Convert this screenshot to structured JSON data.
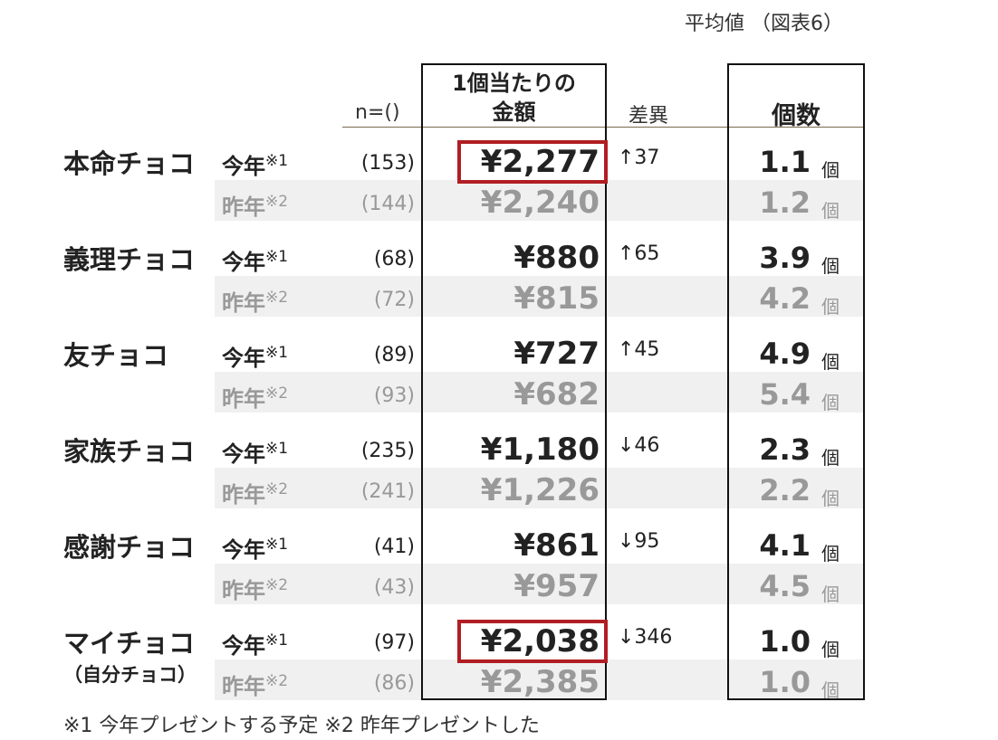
{
  "title": "平均値 （図表6）",
  "headers": {
    "n": "n=()",
    "amount": [
      "1個当たりの",
      "金額"
    ],
    "diff": "差異",
    "count": "個数"
  },
  "groups": [
    {
      "name": "本命チョコ",
      "rows": [
        {
          "label": "今年",
          "note": "※1",
          "n": "(153)",
          "amount": "¥2,277",
          "diff": "↑37",
          "count": "1.1",
          "unit": "個",
          "highlight": true
        },
        {
          "label": "昨年",
          "note": "※2",
          "n": "(144)",
          "amount": "¥2,240",
          "count": "1.2",
          "unit": "個"
        }
      ]
    },
    {
      "name": "義理チョコ",
      "rows": [
        {
          "label": "今年",
          "note": "※1",
          "n": "(68)",
          "amount": "¥880",
          "diff": "↑65",
          "count": "3.9",
          "unit": "個"
        },
        {
          "label": "昨年",
          "note": "※2",
          "n": "(72)",
          "amount": "¥815",
          "count": "4.2",
          "unit": "個"
        }
      ]
    },
    {
      "name": "友チョコ",
      "rows": [
        {
          "label": "今年",
          "note": "※1",
          "n": "(89)",
          "amount": "¥727",
          "diff": "↑45",
          "count": "4.9",
          "unit": "個"
        },
        {
          "label": "昨年",
          "note": "※2",
          "n": "(93)",
          "amount": "¥682",
          "count": "5.4",
          "unit": "個"
        }
      ]
    },
    {
      "name": "家族チョコ",
      "rows": [
        {
          "label": "今年",
          "note": "※1",
          "n": "(235)",
          "amount": "¥1,180",
          "diff": "↓46",
          "count": "2.3",
          "unit": "個"
        },
        {
          "label": "昨年",
          "note": "※2",
          "n": "(241)",
          "amount": "¥1,226",
          "count": "2.2",
          "unit": "個"
        }
      ]
    },
    {
      "name": "感謝チョコ",
      "rows": [
        {
          "label": "今年",
          "note": "※1",
          "n": "(41)",
          "amount": "¥861",
          "diff": "↓95",
          "count": "4.1",
          "unit": "個"
        },
        {
          "label": "昨年",
          "note": "※2",
          "n": "(43)",
          "amount": "¥957",
          "count": "4.5",
          "unit": "個"
        }
      ]
    },
    {
      "name": "マイチョコ",
      "sub": "（自分チョコ）",
      "rows": [
        {
          "label": "今年",
          "note": "※1",
          "n": "(97)",
          "amount": "¥2,038",
          "diff": "↓346",
          "count": "1.0",
          "unit": "個",
          "highlight": true
        },
        {
          "label": "昨年",
          "note": "※2",
          "n": "(86)",
          "amount": "¥2,385",
          "count": "1.0",
          "unit": "個"
        }
      ]
    }
  ],
  "footnote": "※1 今年プレゼントする予定 ※2 昨年プレゼントした"
}
